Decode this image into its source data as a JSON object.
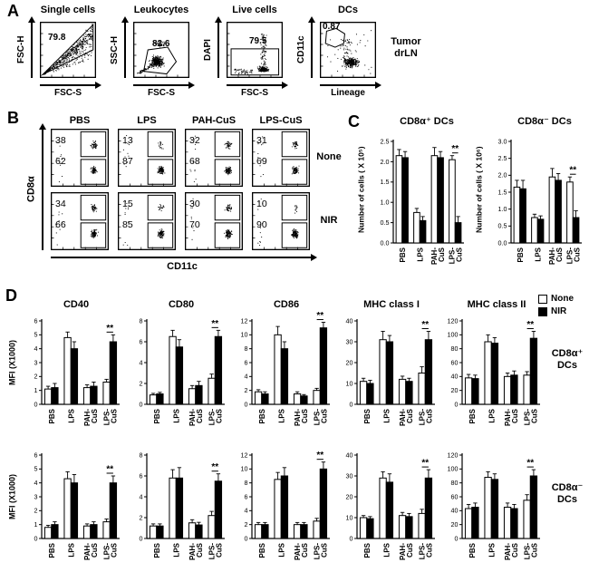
{
  "panel_a": {
    "label": "A",
    "annotation": "Tumor\ndrLN",
    "plots": [
      {
        "title": "Single cells",
        "xlabel": "FSC-S",
        "ylabel": "FSC-H",
        "gate_pct": "79.8",
        "pattern": "wedge"
      },
      {
        "title": "Leukocytes",
        "xlabel": "FSC-S",
        "ylabel": "SSC-H",
        "gate_pct": "82.6",
        "pattern": "cluster"
      },
      {
        "title": "Live cells",
        "xlabel": "FSC-S",
        "ylabel": "DAPI",
        "gate_pct": "79.5",
        "pattern": "band"
      },
      {
        "title": "DCs",
        "xlabel": "Lineage",
        "ylabel": "CD11c",
        "gate_pct": "0.87",
        "pattern": "dc"
      }
    ]
  },
  "panel_b": {
    "label": "B",
    "col_headers": [
      "PBS",
      "LPS",
      "PAH-CuS",
      "LPS-CuS"
    ],
    "row_labels": [
      "None",
      "NIR"
    ],
    "xlabel": "CD11c",
    "ylabel": "CD8α",
    "plots": [
      {
        "row": 0,
        "col": 0,
        "top_pct": "38",
        "bottom_pct": "62"
      },
      {
        "row": 0,
        "col": 1,
        "top_pct": "13",
        "bottom_pct": "87"
      },
      {
        "row": 0,
        "col": 2,
        "top_pct": "32",
        "bottom_pct": "68"
      },
      {
        "row": 0,
        "col": 3,
        "top_pct": "31",
        "bottom_pct": "69"
      },
      {
        "row": 1,
        "col": 0,
        "top_pct": "34",
        "bottom_pct": "66"
      },
      {
        "row": 1,
        "col": 1,
        "top_pct": "15",
        "bottom_pct": "85"
      },
      {
        "row": 1,
        "col": 2,
        "top_pct": "30",
        "bottom_pct": "70"
      },
      {
        "row": 1,
        "col": 3,
        "top_pct": "10",
        "bottom_pct": "90"
      }
    ]
  },
  "panel_c": {
    "label": "C"
  },
  "panel_d": {
    "label": "D",
    "row_labels": [
      "CD8α⁺\nDCs",
      "CD8α⁻\nDCs"
    ],
    "legend": {
      "items": [
        {
          "label": "None",
          "fill": "#ffffff"
        },
        {
          "label": "NIR",
          "fill": "#000000"
        }
      ]
    }
  },
  "chart_data": [
    {
      "panel": "C",
      "type": "bar",
      "title": "CD8α⁺ DCs",
      "ylabel": "Number of cells ( X 10⁵)",
      "categories": [
        "PBS",
        "LPS",
        "PAH-CuS",
        "LPS-CuS"
      ],
      "ylim": [
        0,
        2.5
      ],
      "yticks": [
        "0.0",
        "0.5",
        "1.0",
        "1.5",
        "2.0",
        "2.5"
      ],
      "series": [
        {
          "name": "None",
          "fill": "#ffffff",
          "values": [
            2.15,
            0.75,
            2.15,
            2.05
          ],
          "errors": [
            0.15,
            0.1,
            0.2,
            0.1
          ]
        },
        {
          "name": "NIR",
          "fill": "#000000",
          "values": [
            2.1,
            0.55,
            2.1,
            0.5
          ],
          "errors": [
            0.15,
            0.1,
            0.15,
            0.15
          ]
        }
      ],
      "sig": {
        "group": 3,
        "label": "**"
      }
    },
    {
      "panel": "C",
      "type": "bar",
      "title": "CD8α⁻ DCs",
      "ylabel": "Number of cells ( X 10⁶)",
      "categories": [
        "PBS",
        "LPS",
        "PAH-CuS",
        "LPS-CuS"
      ],
      "ylim": [
        0,
        3.0
      ],
      "yticks": [
        "0.0",
        "0.5",
        "1.0",
        "1.5",
        "2.0",
        "2.5",
        "3.0"
      ],
      "series": [
        {
          "name": "None",
          "fill": "#ffffff",
          "values": [
            1.65,
            0.75,
            1.95,
            1.8
          ],
          "errors": [
            0.2,
            0.1,
            0.25,
            0.15
          ]
        },
        {
          "name": "NIR",
          "fill": "#000000",
          "values": [
            1.6,
            0.7,
            1.85,
            0.75
          ],
          "errors": [
            0.25,
            0.1,
            0.2,
            0.2
          ]
        }
      ],
      "sig": {
        "group": 3,
        "label": "**"
      }
    },
    {
      "panel": "D",
      "row": "CD8α⁺ DCs",
      "type": "bar",
      "title": "CD40",
      "ylabel": "MFI (X1000)",
      "categories": [
        "PBS",
        "LPS",
        "PAH-CuS",
        "LPS-CuS"
      ],
      "ylim": [
        0,
        6
      ],
      "yticks": [
        "0",
        "1",
        "2",
        "3",
        "4",
        "5",
        "6"
      ],
      "series": [
        {
          "name": "None",
          "fill": "#ffffff",
          "values": [
            1.1,
            4.8,
            1.2,
            1.6
          ],
          "errors": [
            0.2,
            0.4,
            0.2,
            0.2
          ]
        },
        {
          "name": "NIR",
          "fill": "#000000",
          "values": [
            1.2,
            4.0,
            1.3,
            4.5
          ],
          "errors": [
            0.3,
            0.5,
            0.3,
            0.5
          ]
        }
      ],
      "sig": {
        "group": 3,
        "label": "**"
      }
    },
    {
      "panel": "D",
      "row": "CD8α⁺ DCs",
      "type": "bar",
      "title": "CD80",
      "ylabel": "MFI (X1000)",
      "categories": [
        "PBS",
        "LPS",
        "PAH-CuS",
        "LPS-CuS"
      ],
      "ylim": [
        0,
        8
      ],
      "yticks": [
        "0",
        "2",
        "4",
        "6",
        "8"
      ],
      "series": [
        {
          "name": "None",
          "fill": "#ffffff",
          "values": [
            0.9,
            6.5,
            1.5,
            2.5
          ],
          "errors": [
            0.15,
            0.6,
            0.3,
            0.4
          ]
        },
        {
          "name": "NIR",
          "fill": "#000000",
          "values": [
            1.0,
            5.5,
            1.8,
            6.5
          ],
          "errors": [
            0.15,
            0.7,
            0.4,
            0.6
          ]
        }
      ],
      "sig": {
        "group": 3,
        "label": "**"
      }
    },
    {
      "panel": "D",
      "row": "CD8α⁺ DCs",
      "type": "bar",
      "title": "CD86",
      "ylabel": "MFI (X1000)",
      "categories": [
        "PBS",
        "LPS",
        "PAH-CuS",
        "LPS-CuS"
      ],
      "ylim": [
        0,
        12
      ],
      "yticks": [
        "0",
        "2",
        "4",
        "6",
        "8",
        "10",
        "12"
      ],
      "series": [
        {
          "name": "None",
          "fill": "#ffffff",
          "values": [
            1.8,
            10.0,
            1.5,
            2.0
          ],
          "errors": [
            0.3,
            1.2,
            0.3,
            0.3
          ]
        },
        {
          "name": "NIR",
          "fill": "#000000",
          "values": [
            1.5,
            8.0,
            1.2,
            11.0
          ],
          "errors": [
            0.3,
            1.0,
            0.2,
            0.8
          ]
        }
      ],
      "sig": {
        "group": 3,
        "label": "**"
      }
    },
    {
      "panel": "D",
      "row": "CD8α⁺ DCs",
      "type": "bar",
      "title": "MHC class I",
      "ylabel": "MFI (X1000)",
      "categories": [
        "PBS",
        "LPS",
        "PAH-CuS",
        "LPS-CuS"
      ],
      "ylim": [
        0,
        40
      ],
      "yticks": [
        "0",
        "10",
        "20",
        "30",
        "40"
      ],
      "series": [
        {
          "name": "None",
          "fill": "#ffffff",
          "values": [
            11,
            31,
            12,
            15
          ],
          "errors": [
            1.5,
            4,
            1.5,
            3
          ]
        },
        {
          "name": "NIR",
          "fill": "#000000",
          "values": [
            10,
            30,
            11,
            31
          ],
          "errors": [
            1.5,
            3,
            1.5,
            4
          ]
        }
      ],
      "sig": {
        "group": 3,
        "label": "**"
      }
    },
    {
      "panel": "D",
      "row": "CD8α⁺ DCs",
      "type": "bar",
      "title": "MHC class II",
      "ylabel": "MFI (X1000)",
      "categories": [
        "PBS",
        "LPS",
        "PAH-CuS",
        "LPS-CuS"
      ],
      "ylim": [
        0,
        120
      ],
      "yticks": [
        "0",
        "20",
        "40",
        "60",
        "80",
        "100",
        "120"
      ],
      "series": [
        {
          "name": "None",
          "fill": "#ffffff",
          "values": [
            38,
            90,
            40,
            42
          ],
          "errors": [
            5,
            10,
            5,
            5
          ]
        },
        {
          "name": "NIR",
          "fill": "#000000",
          "values": [
            37,
            88,
            42,
            95
          ],
          "errors": [
            5,
            8,
            6,
            10
          ]
        }
      ],
      "sig": {
        "group": 3,
        "label": "**"
      }
    },
    {
      "panel": "D",
      "row": "CD8α⁻ DCs",
      "type": "bar",
      "title": "CD40",
      "ylabel": "MFI (X1000)",
      "categories": [
        "PBS",
        "LPS",
        "PAH-CuS",
        "LPS-CuS"
      ],
      "ylim": [
        0,
        6
      ],
      "yticks": [
        "0",
        "1",
        "2",
        "3",
        "4",
        "5",
        "6"
      ],
      "series": [
        {
          "name": "None",
          "fill": "#ffffff",
          "values": [
            0.8,
            4.3,
            0.9,
            1.2
          ],
          "errors": [
            0.15,
            0.5,
            0.15,
            0.2
          ]
        },
        {
          "name": "NIR",
          "fill": "#000000",
          "values": [
            1.0,
            4.0,
            1.0,
            4.0
          ],
          "errors": [
            0.2,
            0.6,
            0.2,
            0.5
          ]
        }
      ],
      "sig": {
        "group": 3,
        "label": "**"
      }
    },
    {
      "panel": "D",
      "row": "CD8α⁻ DCs",
      "type": "bar",
      "title": "CD80",
      "ylabel": "MFI (X1000)",
      "categories": [
        "PBS",
        "LPS",
        "PAH-CuS",
        "LPS-CuS"
      ],
      "ylim": [
        0,
        8
      ],
      "yticks": [
        "0",
        "2",
        "4",
        "6",
        "8"
      ],
      "series": [
        {
          "name": "None",
          "fill": "#ffffff",
          "values": [
            1.2,
            5.8,
            1.5,
            2.2
          ],
          "errors": [
            0.2,
            0.8,
            0.3,
            0.4
          ]
        },
        {
          "name": "NIR",
          "fill": "#000000",
          "values": [
            1.2,
            5.8,
            1.3,
            5.5
          ],
          "errors": [
            0.2,
            1.0,
            0.25,
            0.7
          ]
        }
      ],
      "sig": {
        "group": 3,
        "label": "**"
      }
    },
    {
      "panel": "D",
      "row": "CD8α⁻ DCs",
      "type": "bar",
      "title": "CD86",
      "ylabel": "MFI (X1000)",
      "categories": [
        "PBS",
        "LPS",
        "PAH-CuS",
        "LPS-CuS"
      ],
      "ylim": [
        0,
        12
      ],
      "yticks": [
        "0",
        "2",
        "4",
        "6",
        "8",
        "10",
        "12"
      ],
      "series": [
        {
          "name": "None",
          "fill": "#ffffff",
          "values": [
            2.0,
            8.5,
            2.0,
            2.5
          ],
          "errors": [
            0.3,
            1.0,
            0.3,
            0.4
          ]
        },
        {
          "name": "NIR",
          "fill": "#000000",
          "values": [
            2.0,
            9.0,
            2.0,
            10.0
          ],
          "errors": [
            0.3,
            1.2,
            0.3,
            1.0
          ]
        }
      ],
      "sig": {
        "group": 3,
        "label": "**"
      }
    },
    {
      "panel": "D",
      "row": "CD8α⁻ DCs",
      "type": "bar",
      "title": "MHC class I",
      "ylabel": "MFI (X1000)",
      "categories": [
        "PBS",
        "LPS",
        "PAH-CuS",
        "LPS-CuS"
      ],
      "ylim": [
        0,
        40
      ],
      "yticks": [
        "0",
        "10",
        "20",
        "30",
        "40"
      ],
      "series": [
        {
          "name": "None",
          "fill": "#ffffff",
          "values": [
            10,
            29,
            11,
            12
          ],
          "errors": [
            1,
            3,
            1.5,
            2
          ]
        },
        {
          "name": "NIR",
          "fill": "#000000",
          "values": [
            9.5,
            27,
            10.5,
            29
          ],
          "errors": [
            1,
            4,
            1.5,
            4
          ]
        }
      ],
      "sig": {
        "group": 3,
        "label": "**"
      }
    },
    {
      "panel": "D",
      "row": "CD8α⁻ DCs",
      "type": "bar",
      "title": "MHC class II",
      "ylabel": "MFI (X1000)",
      "categories": [
        "PBS",
        "LPS",
        "PAH-CuS",
        "LPS-CuS"
      ],
      "ylim": [
        0,
        120
      ],
      "yticks": [
        "0",
        "20",
        "40",
        "60",
        "80",
        "100",
        "120"
      ],
      "series": [
        {
          "name": "None",
          "fill": "#ffffff",
          "values": [
            43,
            88,
            45,
            55
          ],
          "errors": [
            6,
            8,
            6,
            8
          ]
        },
        {
          "name": "NIR",
          "fill": "#000000",
          "values": [
            45,
            85,
            43,
            90
          ],
          "errors": [
            6,
            8,
            6,
            9
          ]
        }
      ],
      "sig": {
        "group": 3,
        "label": "**"
      }
    }
  ]
}
